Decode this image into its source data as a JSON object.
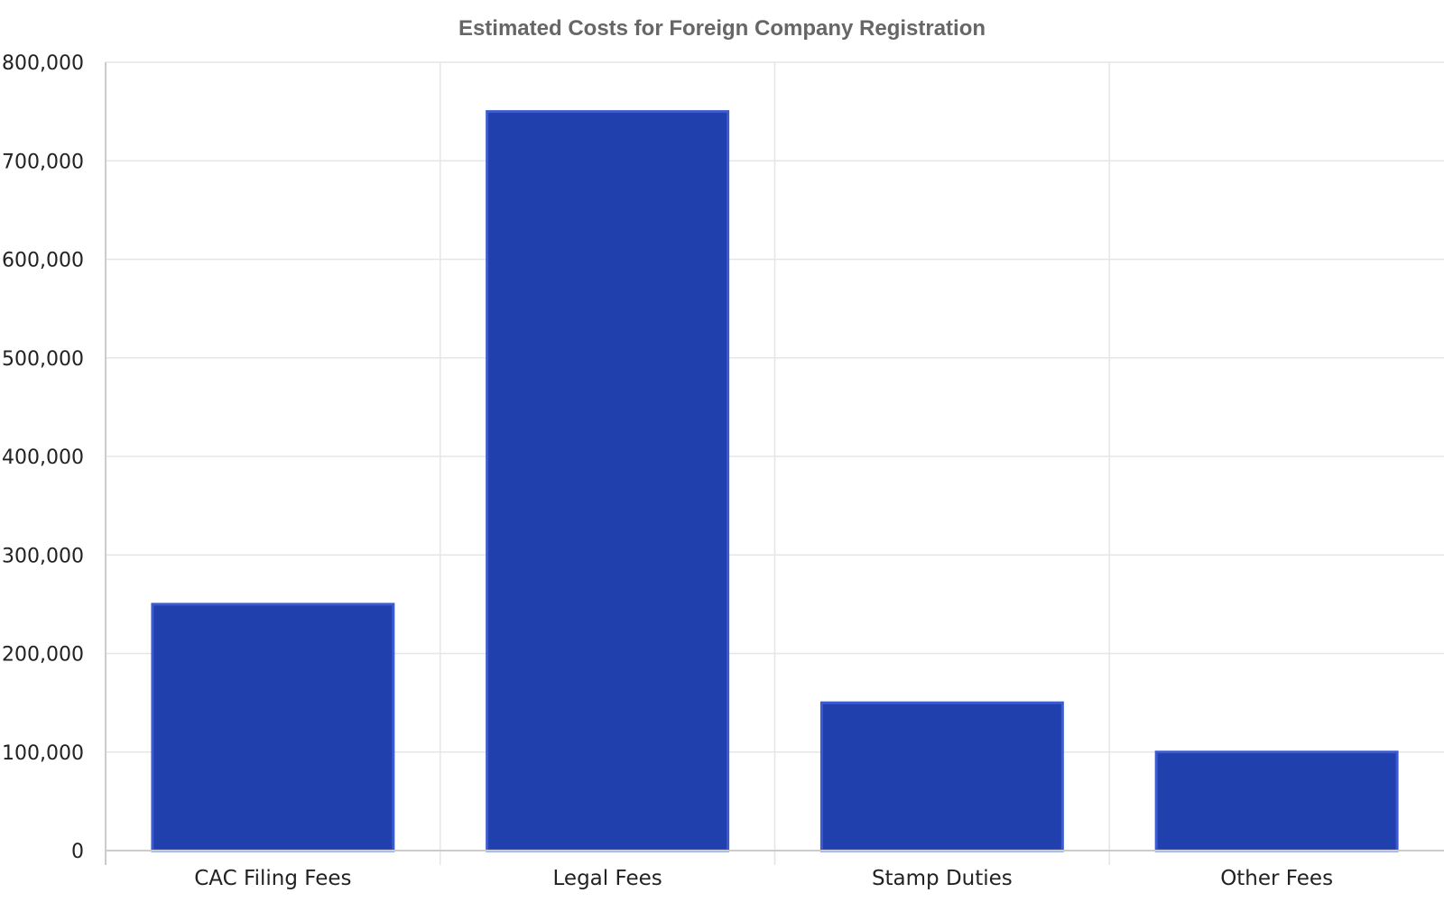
{
  "chart_data": {
    "type": "bar",
    "title": "Estimated Costs for Foreign Company Registration",
    "xlabel": "",
    "ylabel": "",
    "categories": [
      "CAC Filing Fees",
      "Legal Fees",
      "Stamp Duties",
      "Other Fees"
    ],
    "values": [
      250000,
      750000,
      150000,
      100000
    ],
    "ylim": [
      0,
      800000
    ],
    "yticks": [
      0,
      100000,
      200000,
      300000,
      400000,
      500000,
      600000,
      700000,
      800000
    ],
    "ytick_labels": [
      "0",
      "100,000",
      "200,000",
      "300,000",
      "400,000",
      "500,000",
      "600,000",
      "700,000",
      "800,000"
    ],
    "grid": true,
    "legend": "none",
    "colors": {
      "bar_fill": "#1f40ad",
      "bar_border": "#3c5bd0",
      "grid": "#e6e6e6",
      "axis": "#cccccc",
      "title": "#666666"
    }
  }
}
